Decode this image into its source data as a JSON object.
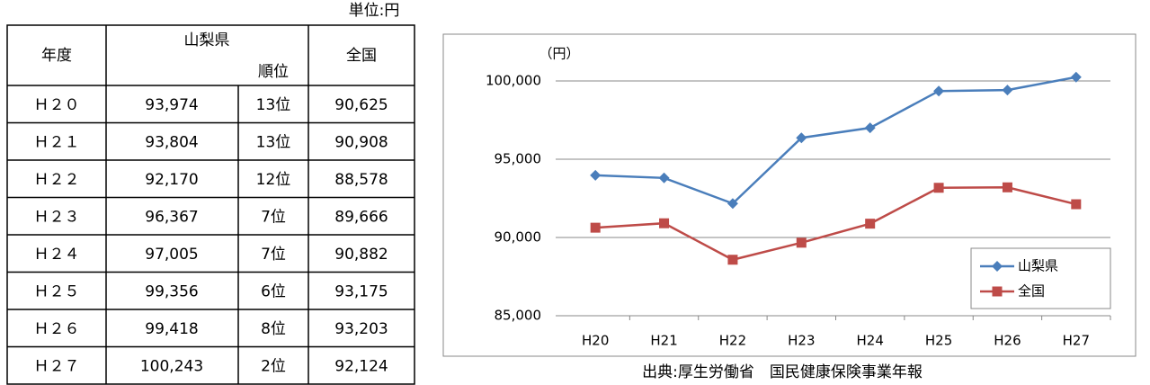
{
  "table": {
    "unit": "単位:円",
    "header": [
      "年度",
      "山梨県",
      "順位",
      "全国"
    ],
    "rows": [
      [
        "Ｈ２０",
        "93,974",
        "13位",
        "90,625"
      ],
      [
        "Ｈ２１",
        "93,804",
        "13位",
        "90,908"
      ],
      [
        "Ｈ２２",
        "92,170",
        "12位",
        "88,578"
      ],
      [
        "Ｈ２３",
        "96,367",
        "7位",
        "89,666"
      ],
      [
        "Ｈ２４",
        "97,005",
        "7位",
        "90,882"
      ],
      [
        "Ｈ２５",
        "99,356",
        "6位",
        "93,175"
      ],
      [
        "Ｈ２６",
        "99,418",
        "8位",
        "93,203"
      ],
      [
        "Ｈ２７",
        "100,243",
        "2位",
        "92,124"
      ]
    ]
  },
  "chart_data": {
    "type": "line",
    "y_label": "（円）",
    "source": "出典:厚生労働省　国民健康保険事業年報",
    "categories": [
      "H20",
      "H21",
      "H22",
      "H23",
      "H24",
      "H25",
      "H26",
      "H27"
    ],
    "series": [
      {
        "name": "山梨県",
        "color": "#4a7ebb",
        "marker": "diamond",
        "values": [
          93974,
          93804,
          92170,
          96367,
          97005,
          99356,
          99418,
          100243
        ]
      },
      {
        "name": "全国",
        "color": "#be4b48",
        "marker": "square",
        "values": [
          90625,
          90908,
          88578,
          89666,
          90882,
          93175,
          93203,
          92124
        ]
      }
    ],
    "ylim": [
      85000,
      100000
    ],
    "yticks": [
      {
        "value": 85000,
        "label": "85,000"
      },
      {
        "value": 90000,
        "label": "90,000"
      },
      {
        "value": 95000,
        "label": "95,000"
      },
      {
        "value": 100000,
        "label": "100,000"
      }
    ],
    "grid": true,
    "legend": "lower right"
  }
}
